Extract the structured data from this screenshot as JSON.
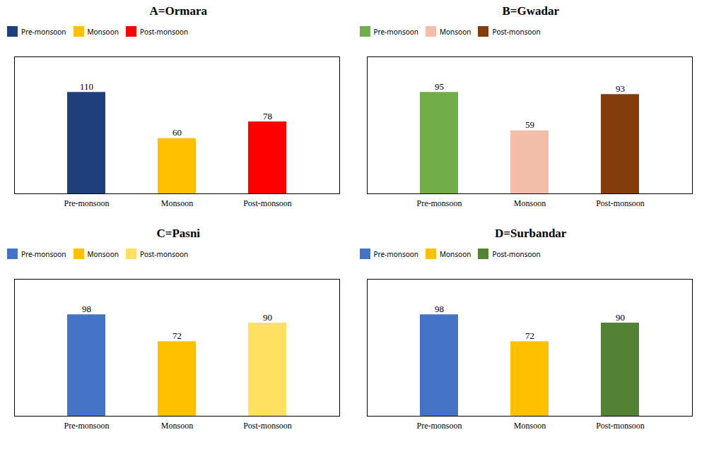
{
  "chart_data": [
    {
      "type": "bar",
      "title": "A=Ormara",
      "categories": [
        "Pre-monsoon",
        "Monsoon",
        "Post-monsoon"
      ],
      "values": [
        110,
        60,
        78
      ],
      "colors": [
        "#1F3E7C",
        "#FFC000",
        "#FF0000"
      ],
      "ylim": [
        0,
        148.5
      ],
      "grid": false,
      "legend": "upper left",
      "data_labels": true,
      "tick_labels": "x"
    },
    {
      "type": "bar",
      "title": "B=Gwadar",
      "categories": [
        "Pre-monsoon",
        "Monsoon",
        "Post-monsoon"
      ],
      "values": [
        95,
        59,
        93
      ],
      "colors": [
        "#70AD47",
        "#F4BEAA",
        "#843C0C"
      ],
      "ylim": [
        0,
        128.25
      ],
      "grid": false,
      "legend": "upper left",
      "data_labels": true,
      "tick_labels": "x"
    },
    {
      "type": "bar",
      "title": "C=Pasni",
      "categories": [
        "Pre-monsoon",
        "Monsoon",
        "Post-monsoon"
      ],
      "values": [
        98,
        72,
        90
      ],
      "colors": [
        "#4472C4",
        "#FFC000",
        "#FFE060"
      ],
      "ylim": [
        0,
        132.3
      ],
      "grid": false,
      "legend": "upper left",
      "data_labels": true,
      "tick_labels": "x"
    },
    {
      "type": "bar",
      "title": "D=Surbandar",
      "categories": [
        "Pre-monsoon",
        "Monsoon",
        "Post-monsoon"
      ],
      "values": [
        98,
        72,
        90
      ],
      "colors": [
        "#4472C4",
        "#FFC000",
        "#548235"
      ],
      "ylim": [
        0,
        132.3
      ],
      "grid": false,
      "legend": "upper left",
      "data_labels": true,
      "tick_labels": "x"
    }
  ]
}
